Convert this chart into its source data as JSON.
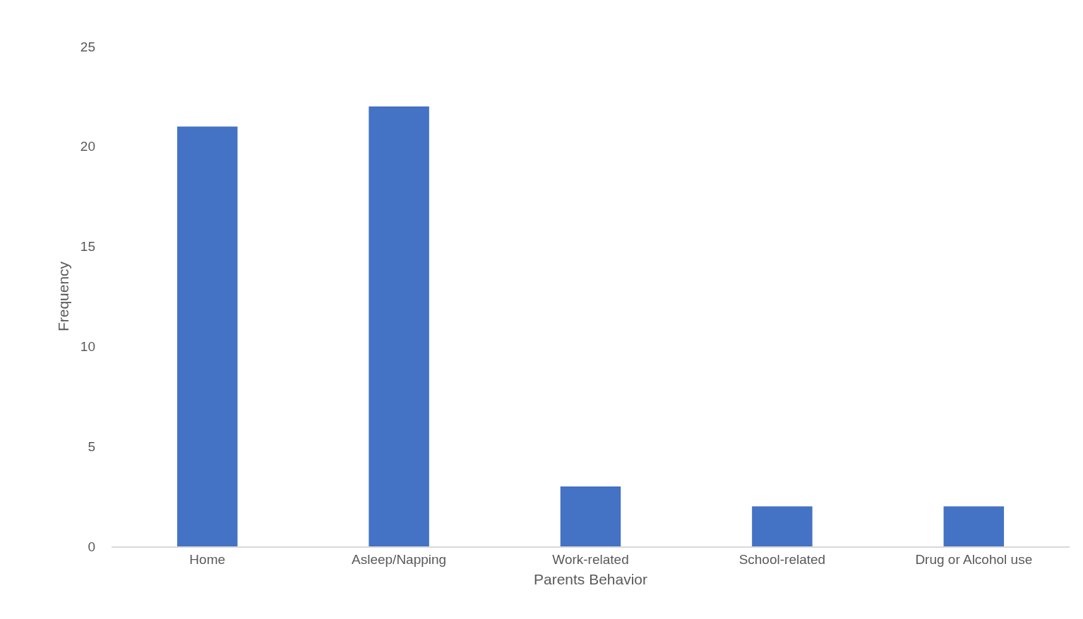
{
  "chart_data": {
    "type": "bar",
    "xlabel": "Parents Behavior",
    "ylabel": "Frequency",
    "categories": [
      "Home",
      "Asleep/Napping",
      "Work-related",
      "School-related",
      "Drug or Alcohol use"
    ],
    "values": [
      21,
      22,
      3,
      2,
      2
    ],
    "color": "#4472c4",
    "ylim": [
      0,
      25
    ],
    "yticks": [
      0,
      5,
      10,
      15,
      20,
      25
    ],
    "grid": false
  }
}
